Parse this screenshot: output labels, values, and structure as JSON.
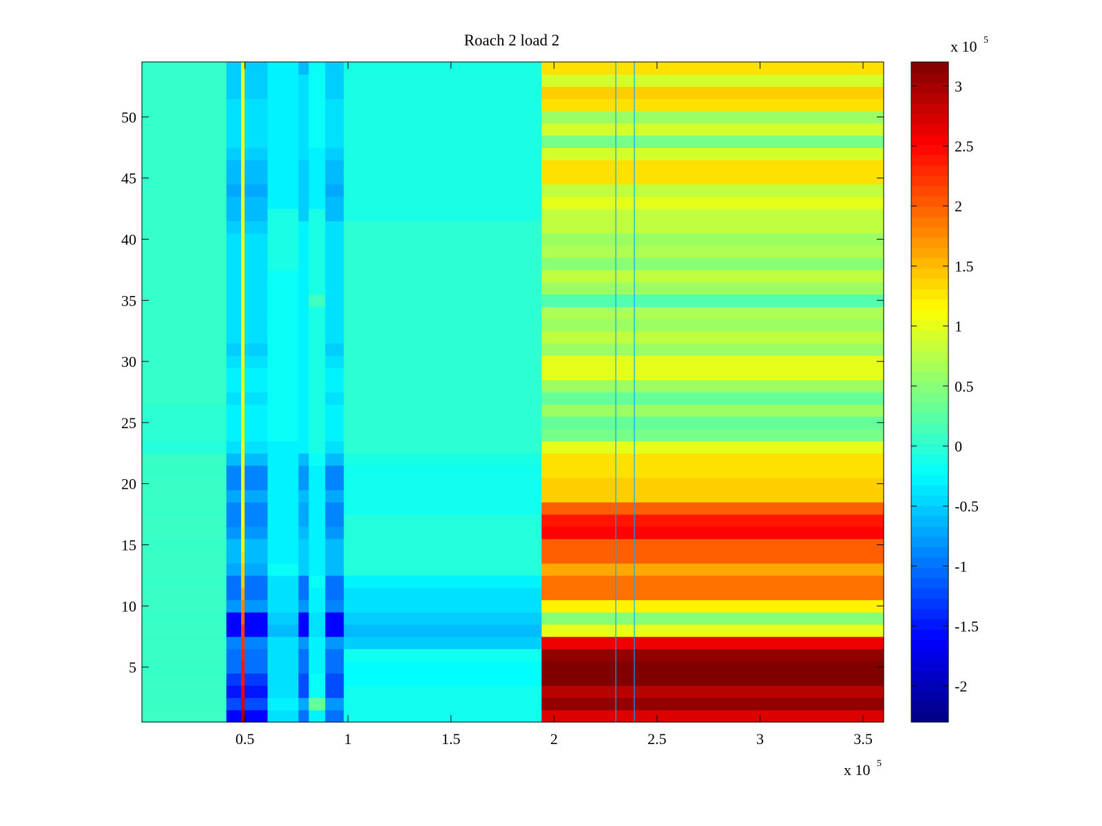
{
  "chart_data": {
    "type": "heatmap",
    "title": "Roach 2 load 2",
    "colormap": "jet",
    "x": {
      "ticks": [
        0.5,
        1,
        1.5,
        2,
        2.5,
        3,
        3.5
      ],
      "tick_labels": [
        "0.5",
        "1",
        "1.5",
        "2",
        "2.5",
        "3",
        "3.5"
      ],
      "exponent_label": "x 10",
      "exponent_sup": "5",
      "range": [
        0.0,
        3.6
      ]
    },
    "y": {
      "ticks": [
        5,
        10,
        15,
        20,
        25,
        30,
        35,
        40,
        45,
        50
      ],
      "tick_labels": [
        "5",
        "10",
        "15",
        "20",
        "25",
        "30",
        "35",
        "40",
        "45",
        "50"
      ],
      "range": [
        0.5,
        54.5
      ],
      "rows": 54
    },
    "colorbar": {
      "ticks": [
        -2,
        -1.5,
        -1,
        -0.5,
        0,
        0.5,
        1,
        1.5,
        2,
        2.5,
        3
      ],
      "tick_labels": [
        "-2",
        "-1.5",
        "-1",
        "-0.5",
        "0",
        "0.5",
        "1",
        "1.5",
        "2",
        "2.5",
        "3"
      ],
      "exponent_label": "x 10",
      "exponent_sup": "5",
      "range": [
        -2.3,
        3.2
      ]
    },
    "segments": [
      {
        "x_range": [
          0.0,
          0.41
        ],
        "row_values": [
          0.08,
          0.07,
          0.07,
          0.07,
          0.06,
          0.07,
          0.06,
          0.07,
          0.06,
          0.07,
          0.07,
          0.06,
          0.07,
          0.07,
          0.06,
          0.07,
          0.07,
          0.06,
          0.07,
          0.07,
          0.06,
          0.07,
          -0.05,
          0.0,
          0.0,
          0.0,
          0.05,
          0.05,
          0.05,
          0.05,
          0.05,
          0.05,
          0.05,
          0.05,
          0.05,
          0.05,
          0.05,
          0.05,
          0.05,
          0.05,
          0.05,
          0.05,
          0.05,
          0.05,
          0.05,
          0.05,
          0.05,
          0.05,
          0.05,
          0.05,
          0.05,
          0.05,
          0.05,
          0.05
        ]
      },
      {
        "x_range": [
          0.41,
          0.61
        ],
        "row_values": [
          -1.6,
          -1.2,
          -1.5,
          -1.3,
          -1.0,
          -1.0,
          -0.9,
          -1.6,
          -1.6,
          -0.8,
          -1.0,
          -1.0,
          -0.7,
          -0.6,
          -0.6,
          -0.8,
          -0.9,
          -0.9,
          -0.7,
          -0.9,
          -0.9,
          -0.6,
          -0.4,
          -0.3,
          -0.3,
          -0.3,
          -0.4,
          -0.3,
          -0.3,
          -0.4,
          -0.5,
          -0.4,
          -0.4,
          -0.4,
          -0.4,
          -0.4,
          -0.4,
          -0.4,
          -0.4,
          -0.4,
          -0.5,
          -0.6,
          -0.6,
          -0.7,
          -0.6,
          -0.6,
          -0.5,
          -0.4,
          -0.4,
          -0.4,
          -0.4,
          -0.5,
          -0.5,
          -0.5
        ]
      },
      {
        "x_range": [
          0.61,
          0.76
        ],
        "row_values": [
          -0.4,
          -0.3,
          -0.4,
          -0.4,
          -0.4,
          -0.4,
          -0.4,
          -0.6,
          -0.5,
          -0.4,
          -0.4,
          -0.4,
          -0.2,
          -0.3,
          -0.3,
          -0.3,
          -0.3,
          -0.3,
          -0.3,
          -0.3,
          -0.3,
          -0.3,
          -0.3,
          -0.2,
          -0.2,
          -0.2,
          -0.2,
          -0.2,
          -0.2,
          -0.2,
          -0.2,
          -0.2,
          -0.2,
          -0.2,
          -0.2,
          -0.2,
          -0.2,
          -0.1,
          -0.1,
          -0.1,
          -0.1,
          -0.1,
          -0.3,
          -0.3,
          -0.3,
          -0.3,
          -0.3,
          -0.3,
          -0.3,
          -0.3,
          -0.3,
          -0.3,
          -0.3,
          -0.3
        ]
      },
      {
        "x_range": [
          0.76,
          0.81
        ],
        "row_values": [
          -1.0,
          -0.7,
          -1.2,
          -1.2,
          -1.0,
          -1.0,
          -0.8,
          -1.6,
          -1.6,
          -0.8,
          -1.0,
          -1.0,
          -0.5,
          -0.5,
          -0.5,
          -0.6,
          -0.7,
          -0.7,
          -0.6,
          -0.8,
          -0.8,
          -0.6,
          -0.3,
          -0.3,
          -0.3,
          -0.3,
          -0.3,
          -0.3,
          -0.3,
          -0.3,
          -0.3,
          -0.3,
          -0.3,
          -0.3,
          -0.3,
          -0.3,
          -0.3,
          -0.3,
          -0.3,
          -0.3,
          -0.3,
          -0.5,
          -0.5,
          -0.5,
          -0.5,
          -0.5,
          -0.4,
          -0.4,
          -0.4,
          -0.4,
          -0.4,
          -0.4,
          -0.4,
          -0.6
        ]
      },
      {
        "x_range": [
          0.81,
          0.89
        ],
        "row_values": [
          -0.3,
          0.3,
          -0.2,
          -0.2,
          -0.3,
          -0.3,
          -0.3,
          -0.4,
          -0.4,
          -0.3,
          -0.3,
          -0.2,
          -0.3,
          -0.3,
          -0.3,
          -0.3,
          -0.3,
          -0.3,
          -0.3,
          -0.3,
          -0.3,
          -0.2,
          -0.1,
          -0.1,
          -0.1,
          -0.1,
          -0.1,
          -0.1,
          -0.1,
          -0.1,
          -0.1,
          -0.1,
          -0.1,
          -0.1,
          0.1,
          -0.1,
          -0.1,
          -0.1,
          -0.1,
          -0.1,
          -0.1,
          -0.1,
          -0.3,
          -0.3,
          -0.3,
          -0.3,
          -0.3,
          -0.2,
          -0.2,
          -0.2,
          -0.2,
          -0.2,
          -0.2,
          -0.2
        ]
      },
      {
        "x_range": [
          0.89,
          0.98
        ],
        "row_values": [
          -1.0,
          -0.8,
          -1.2,
          -1.2,
          -1.0,
          -1.0,
          -0.8,
          -1.6,
          -1.6,
          -0.9,
          -1.0,
          -1.0,
          -0.6,
          -0.6,
          -0.6,
          -0.8,
          -0.9,
          -0.9,
          -0.7,
          -0.9,
          -0.9,
          -0.6,
          -0.4,
          -0.3,
          -0.3,
          -0.3,
          -0.4,
          -0.3,
          -0.3,
          -0.4,
          -0.5,
          -0.4,
          -0.4,
          -0.4,
          -0.4,
          -0.4,
          -0.4,
          -0.4,
          -0.4,
          -0.4,
          -0.4,
          -0.6,
          -0.6,
          -0.7,
          -0.6,
          -0.6,
          -0.5,
          -0.4,
          -0.4,
          -0.4,
          -0.4,
          -0.5,
          -0.5,
          -0.5
        ]
      },
      {
        "x_range": [
          0.98,
          1.94
        ],
        "row_values": [
          -0.15,
          -0.15,
          -0.15,
          -0.25,
          -0.25,
          -0.15,
          -0.5,
          -0.6,
          -0.5,
          -0.4,
          -0.4,
          -0.3,
          -0.05,
          -0.05,
          -0.05,
          -0.05,
          -0.05,
          -0.15,
          -0.15,
          -0.15,
          -0.15,
          -0.1,
          0.0,
          0.0,
          0.0,
          0.0,
          0.0,
          0.0,
          0.0,
          0.0,
          0.0,
          0.0,
          0.0,
          0.0,
          0.0,
          0.0,
          0.0,
          0.0,
          0.0,
          0.0,
          0.0,
          -0.1,
          -0.1,
          -0.1,
          -0.1,
          -0.1,
          -0.1,
          -0.1,
          -0.1,
          -0.1,
          -0.1,
          -0.1,
          -0.1,
          -0.1
        ]
      },
      {
        "x_range": [
          1.94,
          3.6
        ],
        "row_values": [
          2.7,
          3.1,
          2.9,
          3.2,
          3.2,
          3.1,
          2.6,
          1.0,
          0.5,
          1.2,
          1.9,
          1.9,
          1.6,
          2.0,
          2.0,
          2.5,
          2.4,
          2.0,
          1.4,
          1.4,
          1.3,
          1.3,
          1.0,
          0.4,
          0.3,
          0.6,
          0.3,
          0.6,
          1.0,
          1.0,
          0.6,
          0.8,
          0.6,
          0.7,
          0.2,
          0.6,
          0.8,
          0.5,
          0.7,
          0.6,
          0.8,
          0.8,
          1.0,
          0.8,
          1.3,
          1.3,
          0.9,
          0.4,
          0.9,
          0.6,
          1.3,
          1.4,
          0.9,
          1.3
        ]
      }
    ],
    "vertical_lines": [
      {
        "x": 0.49,
        "row_values": [
          3.0,
          2.7,
          2.6,
          2.4,
          2.4,
          2.3,
          2.2,
          2.2,
          2.0,
          1.8,
          1.6,
          1.4,
          1.4,
          1.3,
          1.2,
          1.2,
          1.1,
          1.1,
          1.0,
          1.0,
          1.0,
          1.0,
          1.0,
          1.0,
          1.0,
          1.0,
          1.0,
          1.0,
          1.0,
          1.0,
          1.0,
          1.0,
          1.0,
          1.0,
          1.0,
          1.0,
          1.0,
          1.0,
          1.0,
          1.0,
          1.0,
          1.0,
          1.0,
          1.0,
          1.0,
          1.0,
          1.0,
          1.0,
          1.0,
          1.0,
          1.0,
          1.0,
          1.0,
          1.0
        ]
      },
      {
        "x": 2.3,
        "value": -0.7
      },
      {
        "x": 2.39,
        "value": -0.7
      }
    ]
  }
}
